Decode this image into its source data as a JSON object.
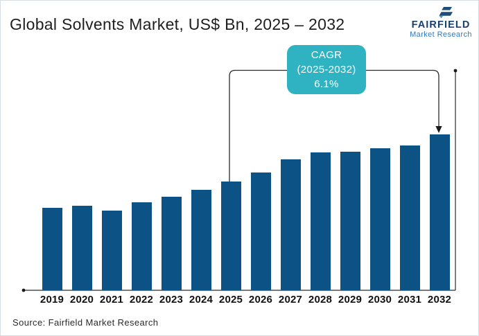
{
  "header": {
    "title": "Global Solvents Market, US$ Bn, 2025 – 2032",
    "logo": {
      "name": "FAIRFIELD",
      "subtitle": "Market Research"
    }
  },
  "annotation": {
    "line1": "CAGR",
    "line2": "(2025-2032)",
    "line3": "6.1%"
  },
  "footer": {
    "source": "Source: Fairfield Market Research"
  },
  "colors": {
    "bar": "#0d5284",
    "accent_teal": "#2fb3c3",
    "logo_navy": "#17406e",
    "logo_blue": "#2e7bbd",
    "axis": "#2a2a2a"
  },
  "chart_data": {
    "type": "bar",
    "title": "Global Solvents Market, US$ Bn, 2025 – 2032",
    "categories": [
      "2019",
      "2020",
      "2021",
      "2022",
      "2023",
      "2024",
      "2025",
      "2026",
      "2027",
      "2028",
      "2029",
      "2030",
      "2031",
      "2032"
    ],
    "values": [
      119,
      122,
      115,
      127,
      135,
      145,
      157,
      170,
      189,
      199,
      200,
      205,
      209,
      225
    ],
    "value_unit": "relative bar height in px (no value axis labels shown in figure)",
    "xlabel": "",
    "ylabel": "",
    "grid": false,
    "legend": false,
    "bar_color": "#0d5284",
    "annotation": {
      "label": "CAGR (2025-2032) 6.1%",
      "from_category": "2025",
      "to_category": "2032"
    }
  }
}
